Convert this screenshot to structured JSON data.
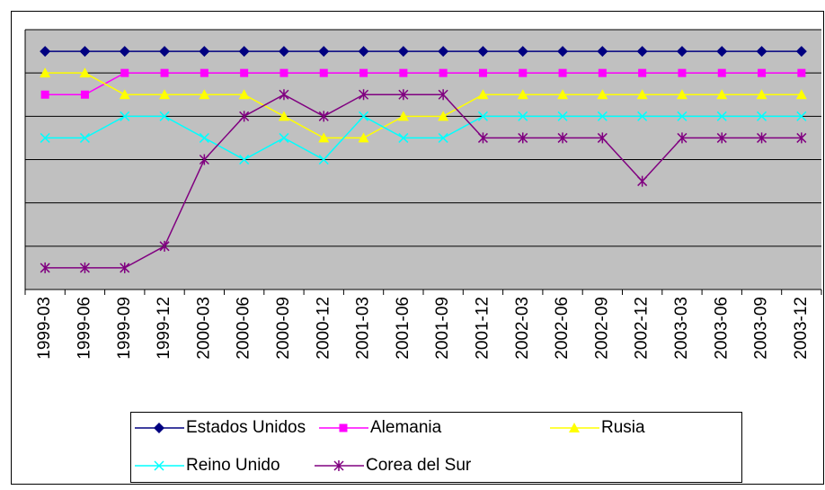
{
  "chart_data": {
    "type": "line",
    "categories": [
      "1999-03",
      "1999-06",
      "1999-09",
      "1999-12",
      "2000-03",
      "2000-06",
      "2000-09",
      "2000-12",
      "2001-03",
      "2001-06",
      "2001-09",
      "2001-12",
      "2002-03",
      "2002-06",
      "2002-09",
      "2002-12",
      "2003-03",
      "2003-06",
      "2003-09",
      "2003-12"
    ],
    "series": [
      {
        "name": "Estados Unidos",
        "color": "#000080",
        "marker": "diamond",
        "values": [
          5.5,
          5.5,
          5.5,
          5.5,
          5.5,
          5.5,
          5.5,
          5.5,
          5.5,
          5.5,
          5.5,
          5.5,
          5.5,
          5.5,
          5.5,
          5.5,
          5.5,
          5.5,
          5.5,
          5.5
        ]
      },
      {
        "name": "Alemania",
        "color": "#ff00ff",
        "marker": "square",
        "values": [
          4.5,
          4.5,
          5,
          5,
          5,
          5,
          5,
          5,
          5,
          5,
          5,
          5,
          5,
          5,
          5,
          5,
          5,
          5,
          5,
          5
        ]
      },
      {
        "name": "Rusia",
        "color": "#ffff00",
        "marker": "triangle",
        "values": [
          5,
          5,
          4.5,
          4.5,
          4.5,
          4.5,
          4,
          3.5,
          3.5,
          4,
          4,
          4.5,
          4.5,
          4.5,
          4.5,
          4.5,
          4.5,
          4.5,
          4.5,
          4.5
        ]
      },
      {
        "name": "Reino Unido",
        "color": "#00ffff",
        "marker": "x",
        "values": [
          3.5,
          3.5,
          4,
          4,
          3.5,
          3,
          3.5,
          3,
          4,
          3.5,
          3.5,
          4,
          4,
          4,
          4,
          4,
          4,
          4,
          4,
          4
        ]
      },
      {
        "name": "Corea del Sur",
        "color": "#800080",
        "marker": "star",
        "values": [
          0.5,
          0.5,
          0.5,
          1,
          3,
          4,
          4.5,
          4,
          4.5,
          4.5,
          4.5,
          3.5,
          3.5,
          3.5,
          3.5,
          2.5,
          3.5,
          3.5,
          3.5,
          3.5
        ]
      }
    ],
    "ylim": [
      0,
      6
    ],
    "yticks": [
      0,
      1,
      2,
      3,
      4,
      5,
      6
    ],
    "grid": true
  }
}
